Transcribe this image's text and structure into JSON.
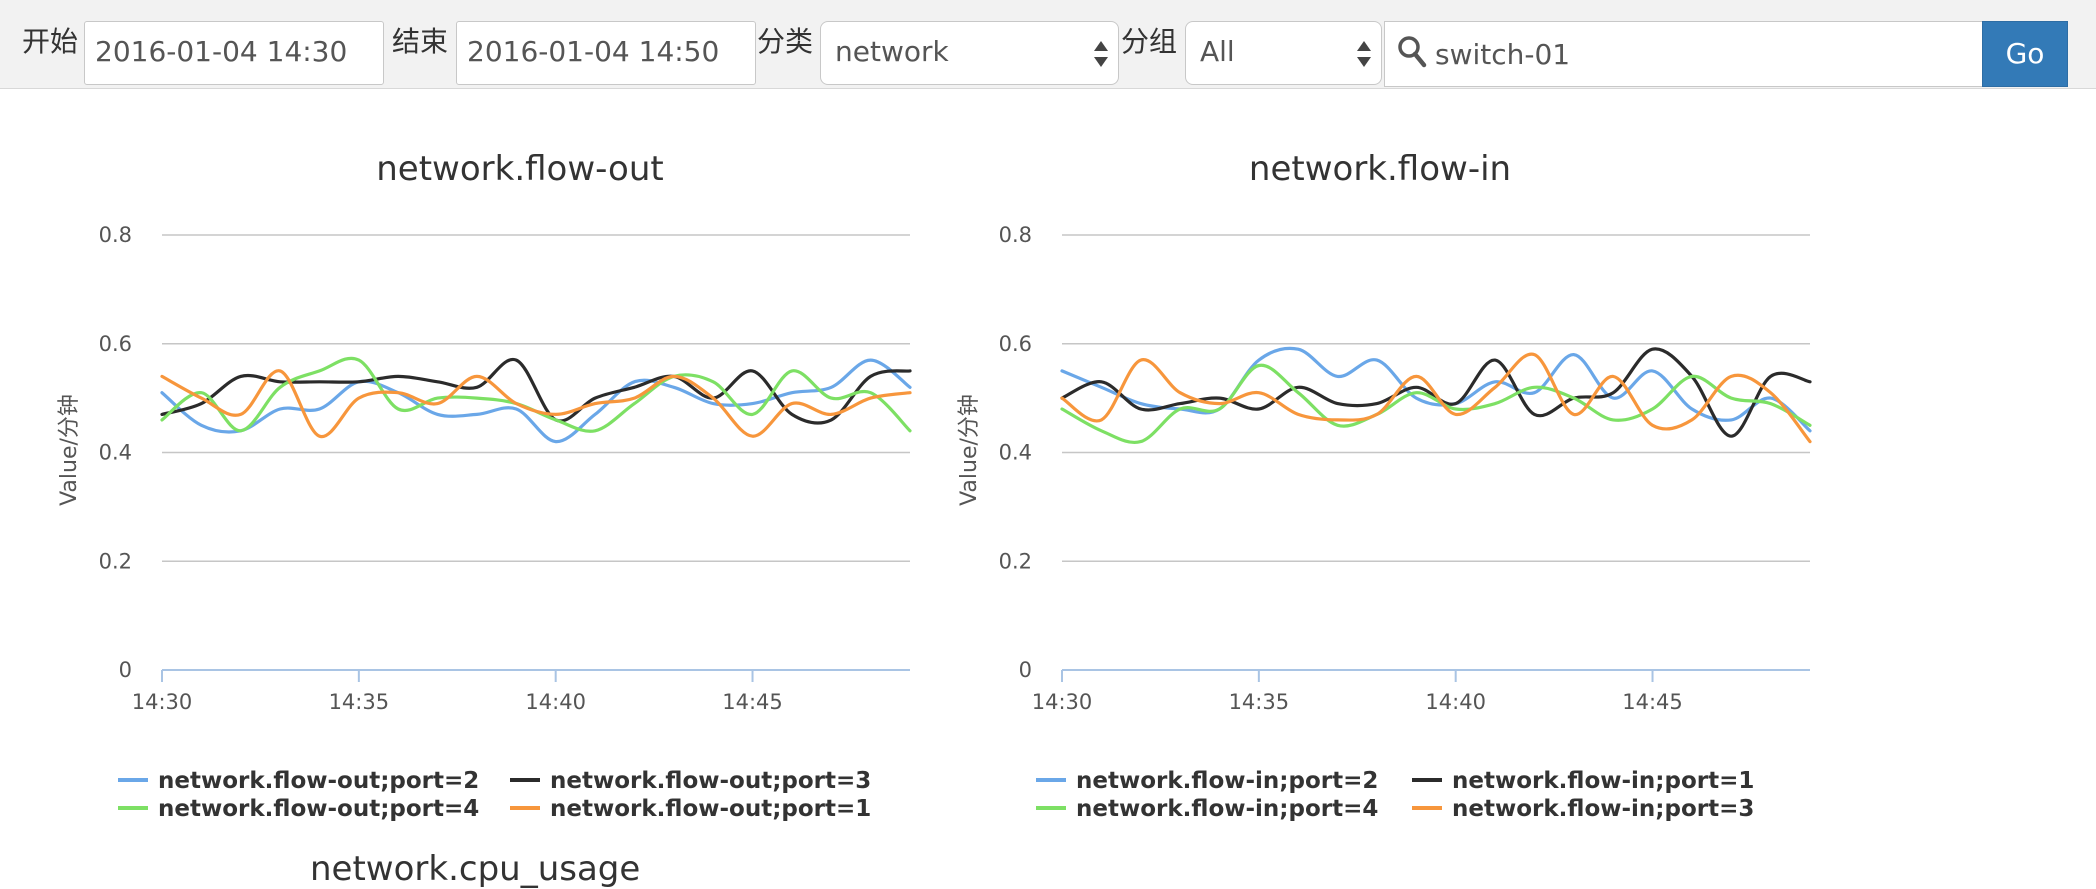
{
  "toolbar": {
    "start_label": "开始",
    "start_value": "2016-01-04 14:30",
    "end_label": "结束",
    "end_value": "2016-01-04 14:50",
    "category_label": "分类",
    "category_value": "network",
    "group_label": "分组",
    "group_value": "All",
    "search_value": "switch-01",
    "go_label": "Go"
  },
  "colors": {
    "blue": "#6aa7e8",
    "black": "#2b2b2b",
    "green": "#7de064",
    "orange": "#f7963c",
    "go_button": "#337ab7"
  },
  "chart_data": [
    {
      "type": "line",
      "title": "network.flow-out",
      "ylabel": "Value/分钟",
      "ylim": [
        0,
        0.8
      ],
      "yticks": [
        "0",
        "0.2",
        "0.4",
        "0.6",
        "0.8"
      ],
      "xlim": [
        "14:30",
        "14:49"
      ],
      "xticks": [
        "14:30",
        "14:35",
        "14:40",
        "14:45"
      ],
      "grid": true,
      "legend_position": "bottom",
      "x": [
        "14:30",
        "14:31",
        "14:32",
        "14:33",
        "14:34",
        "14:35",
        "14:36",
        "14:37",
        "14:38",
        "14:39",
        "14:40",
        "14:41",
        "14:42",
        "14:43",
        "14:44",
        "14:45",
        "14:46",
        "14:47",
        "14:48",
        "14:49"
      ],
      "series": [
        {
          "name": "network.flow-out;port=2",
          "color": "#6aa7e8",
          "values": [
            0.51,
            0.45,
            0.44,
            0.48,
            0.48,
            0.53,
            0.51,
            0.47,
            0.47,
            0.48,
            0.42,
            0.47,
            0.53,
            0.52,
            0.49,
            0.49,
            0.51,
            0.52,
            0.57,
            0.52
          ]
        },
        {
          "name": "network.flow-out;port=3",
          "color": "#2b2b2b",
          "values": [
            0.47,
            0.49,
            0.54,
            0.53,
            0.53,
            0.53,
            0.54,
            0.53,
            0.52,
            0.57,
            0.46,
            0.5,
            0.52,
            0.54,
            0.5,
            0.55,
            0.47,
            0.46,
            0.54,
            0.55
          ]
        },
        {
          "name": "network.flow-out;port=4",
          "color": "#7de064",
          "values": [
            0.46,
            0.51,
            0.44,
            0.52,
            0.55,
            0.57,
            0.48,
            0.5,
            0.5,
            0.49,
            0.46,
            0.44,
            0.49,
            0.54,
            0.53,
            0.47,
            0.55,
            0.5,
            0.51,
            0.44
          ]
        },
        {
          "name": "network.flow-out;port=1",
          "color": "#f7963c",
          "values": [
            0.54,
            0.5,
            0.47,
            0.55,
            0.43,
            0.5,
            0.51,
            0.49,
            0.54,
            0.49,
            0.47,
            0.49,
            0.5,
            0.54,
            0.5,
            0.43,
            0.49,
            0.47,
            0.5,
            0.51
          ]
        }
      ]
    },
    {
      "type": "line",
      "title": "network.flow-in",
      "ylabel": "Value/分钟",
      "ylim": [
        0,
        0.8
      ],
      "yticks": [
        "0",
        "0.2",
        "0.4",
        "0.6",
        "0.8"
      ],
      "xlim": [
        "14:30",
        "14:49"
      ],
      "xticks": [
        "14:30",
        "14:35",
        "14:40",
        "14:45"
      ],
      "grid": true,
      "legend_position": "bottom",
      "x": [
        "14:30",
        "14:31",
        "14:32",
        "14:33",
        "14:34",
        "14:35",
        "14:36",
        "14:37",
        "14:38",
        "14:39",
        "14:40",
        "14:41",
        "14:42",
        "14:43",
        "14:44",
        "14:45",
        "14:46",
        "14:47",
        "14:48",
        "14:49"
      ],
      "series": [
        {
          "name": "network.flow-in;port=2",
          "color": "#6aa7e8",
          "values": [
            0.55,
            0.52,
            0.49,
            0.48,
            0.48,
            0.57,
            0.59,
            0.54,
            0.57,
            0.5,
            0.49,
            0.53,
            0.51,
            0.58,
            0.5,
            0.55,
            0.48,
            0.46,
            0.5,
            0.44
          ]
        },
        {
          "name": "network.flow-in;port=1",
          "color": "#2b2b2b",
          "values": [
            0.5,
            0.53,
            0.48,
            0.49,
            0.5,
            0.48,
            0.52,
            0.49,
            0.49,
            0.52,
            0.49,
            0.57,
            0.47,
            0.5,
            0.51,
            0.59,
            0.54,
            0.43,
            0.54,
            0.53
          ]
        },
        {
          "name": "network.flow-in;port=4",
          "color": "#7de064",
          "values": [
            0.48,
            0.44,
            0.42,
            0.48,
            0.48,
            0.56,
            0.51,
            0.45,
            0.47,
            0.51,
            0.48,
            0.49,
            0.52,
            0.5,
            0.46,
            0.48,
            0.54,
            0.5,
            0.49,
            0.45
          ]
        },
        {
          "name": "network.flow-in;port=3",
          "color": "#f7963c",
          "values": [
            0.5,
            0.46,
            0.57,
            0.51,
            0.49,
            0.51,
            0.47,
            0.46,
            0.47,
            0.54,
            0.47,
            0.52,
            0.58,
            0.47,
            0.54,
            0.45,
            0.46,
            0.54,
            0.51,
            0.42
          ]
        }
      ]
    }
  ],
  "next_chart_title": "network.cpu_usage"
}
